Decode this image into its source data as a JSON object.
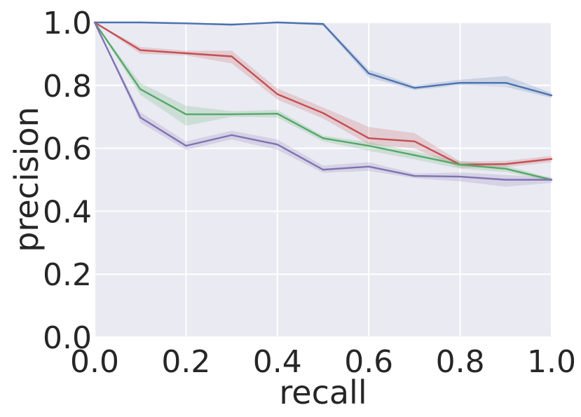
{
  "chart_data": {
    "type": "line",
    "title": "",
    "xlabel": "recall",
    "ylabel": "precision",
    "xlim": [
      0.0,
      1.0
    ],
    "ylim": [
      0.0,
      1.0
    ],
    "x_ticks": [
      "0.0",
      "0.2",
      "0.4",
      "0.6",
      "0.8",
      "1.0"
    ],
    "y_ticks": [
      "0.0",
      "0.2",
      "0.4",
      "0.6",
      "0.8",
      "1.0"
    ],
    "grid": true,
    "background": "#eaeaf2",
    "x": [
      0.0,
      0.1,
      0.2,
      0.3,
      0.4,
      0.5,
      0.6,
      0.7,
      0.8,
      0.9,
      1.0
    ],
    "series": [
      {
        "color": "#4c72b0",
        "values": [
          1.0,
          1.0,
          0.997,
          0.993,
          1.0,
          0.995,
          0.838,
          0.792,
          0.808,
          0.808,
          0.768
        ],
        "band_low": [
          1.0,
          1.0,
          0.995,
          0.99,
          0.998,
          0.99,
          0.825,
          0.785,
          0.8,
          0.795,
          0.76
        ],
        "band_high": [
          1.0,
          1.0,
          1.0,
          0.997,
          1.0,
          1.0,
          0.85,
          0.8,
          0.818,
          0.83,
          0.776
        ]
      },
      {
        "color": "#c44e52",
        "values": [
          1.0,
          0.912,
          0.902,
          0.892,
          0.772,
          0.712,
          0.632,
          0.622,
          0.548,
          0.55,
          0.566
        ],
        "band_low": [
          1.0,
          0.9,
          0.895,
          0.87,
          0.755,
          0.695,
          0.612,
          0.6,
          0.538,
          0.54,
          0.556
        ],
        "band_high": [
          1.0,
          0.922,
          0.91,
          0.91,
          0.79,
          0.73,
          0.668,
          0.648,
          0.558,
          0.56,
          0.576
        ]
      },
      {
        "color": "#55a868",
        "values": [
          1.0,
          0.788,
          0.708,
          0.708,
          0.71,
          0.632,
          0.608,
          0.578,
          0.548,
          0.535,
          0.5
        ],
        "band_low": [
          1.0,
          0.77,
          0.672,
          0.7,
          0.698,
          0.622,
          0.592,
          0.565,
          0.535,
          0.525,
          0.495
        ],
        "band_high": [
          1.0,
          0.808,
          0.735,
          0.718,
          0.722,
          0.64,
          0.62,
          0.59,
          0.56,
          0.545,
          0.505
        ]
      },
      {
        "color": "#8172b2",
        "values": [
          1.0,
          0.698,
          0.608,
          0.642,
          0.612,
          0.532,
          0.542,
          0.512,
          0.51,
          0.5,
          0.5
        ],
        "band_low": [
          1.0,
          0.682,
          0.595,
          0.628,
          0.595,
          0.522,
          0.528,
          0.505,
          0.495,
          0.478,
          0.49
        ],
        "band_high": [
          1.0,
          0.715,
          0.622,
          0.656,
          0.628,
          0.545,
          0.556,
          0.52,
          0.523,
          0.515,
          0.508
        ]
      }
    ]
  }
}
